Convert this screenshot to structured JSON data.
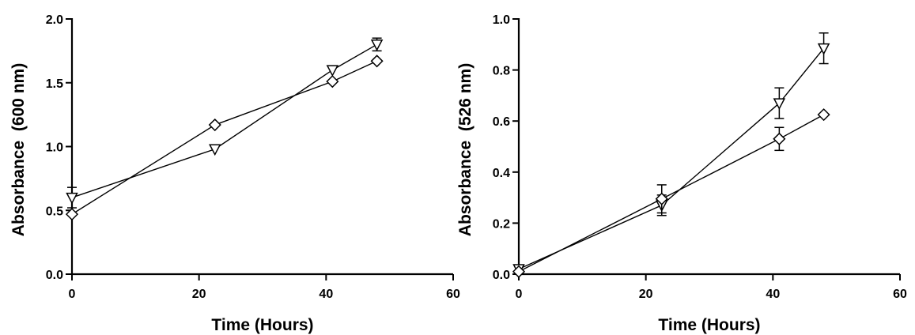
{
  "chart_data": [
    {
      "type": "line",
      "xlabel": "Time (Hours)",
      "ylabel": "Absorbance  (600 nm)",
      "xlim": [
        0,
        60
      ],
      "ylim": [
        0,
        2.0
      ],
      "xticks": [
        "0",
        "20",
        "40",
        "60"
      ],
      "yticks": [
        "0.0",
        "0.5",
        "1.0",
        "1.5",
        "2.0"
      ],
      "grid": false,
      "series": [
        {
          "marker": "triangle-down",
          "x": [
            0,
            22.5,
            41,
            48
          ],
          "y": [
            0.6,
            0.98,
            1.6,
            1.8
          ],
          "err": [
            0.08,
            0.0,
            0.0,
            0.05
          ]
        },
        {
          "marker": "diamond",
          "x": [
            0,
            22.5,
            41,
            48
          ],
          "y": [
            0.47,
            1.17,
            1.51,
            1.67
          ],
          "err": [
            0.0,
            0.0,
            0.0,
            0.0
          ]
        }
      ]
    },
    {
      "type": "line",
      "xlabel": "Time (Hours)",
      "ylabel": "Absorbance  (526 nm)",
      "xlim": [
        0,
        60
      ],
      "ylim": [
        0,
        1.0
      ],
      "xticks": [
        "0",
        "20",
        "40",
        "60"
      ],
      "yticks": [
        "0.0",
        "0.2",
        "0.4",
        "0.6",
        "0.8",
        "1.0"
      ],
      "grid": false,
      "series": [
        {
          "marker": "triangle-down",
          "x": [
            0,
            22.5,
            41,
            48
          ],
          "y": [
            0.02,
            0.27,
            0.67,
            0.885
          ],
          "err": [
            0.01,
            0.04,
            0.06,
            0.06
          ]
        },
        {
          "marker": "diamond",
          "x": [
            0,
            22.5,
            41,
            48
          ],
          "y": [
            0.01,
            0.295,
            0.53,
            0.625
          ],
          "err": [
            0.0,
            0.055,
            0.045,
            0.0
          ]
        }
      ]
    }
  ]
}
